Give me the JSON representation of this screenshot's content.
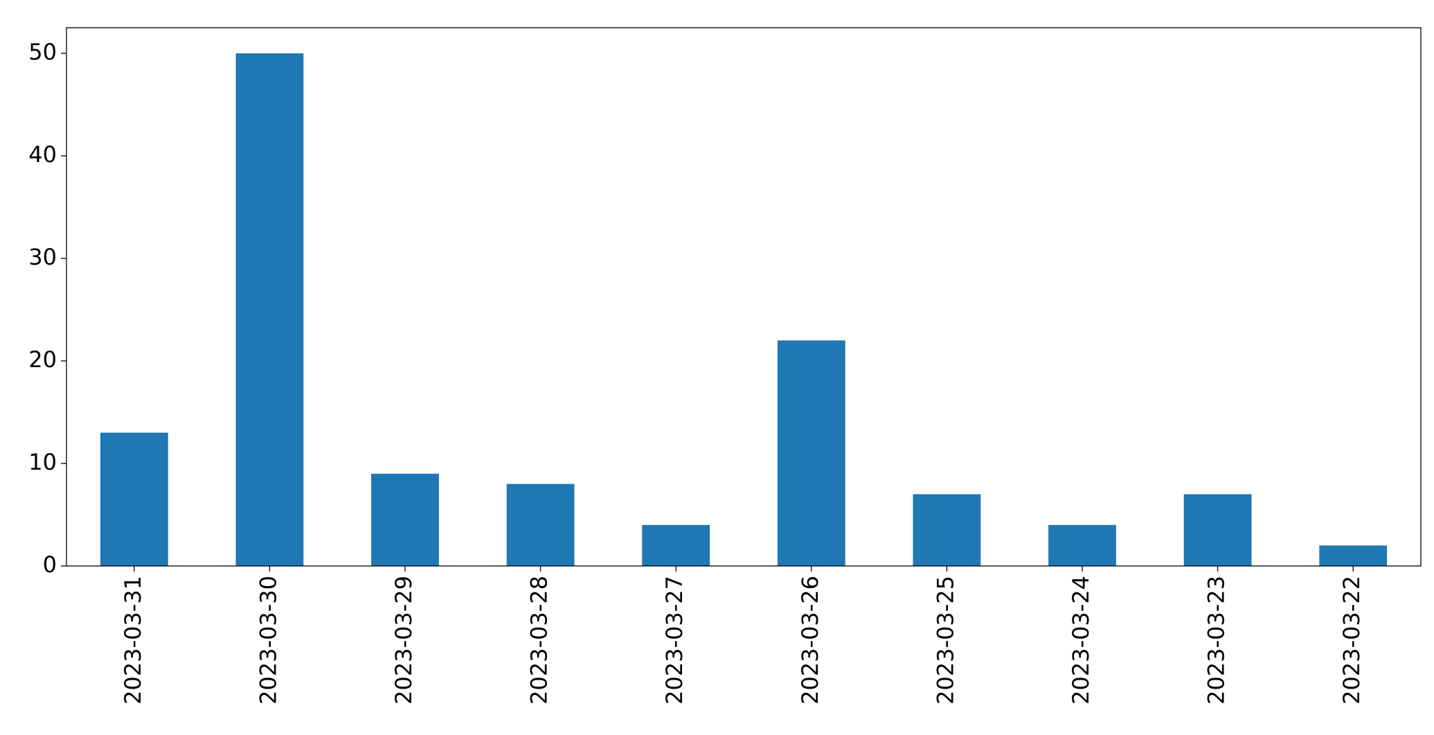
{
  "chart_data": {
    "type": "bar",
    "categories": [
      "2023-03-31",
      "2023-03-30",
      "2023-03-29",
      "2023-03-28",
      "2023-03-27",
      "2023-03-26",
      "2023-03-25",
      "2023-03-24",
      "2023-03-23",
      "2023-03-22"
    ],
    "values": [
      13,
      50,
      9,
      8,
      4,
      22,
      7,
      4,
      7,
      2
    ],
    "color": "#1f77b4",
    "ylim": [
      0,
      52.5
    ],
    "yticks": [
      0,
      10,
      20,
      30,
      40,
      50
    ],
    "grid": false
  }
}
